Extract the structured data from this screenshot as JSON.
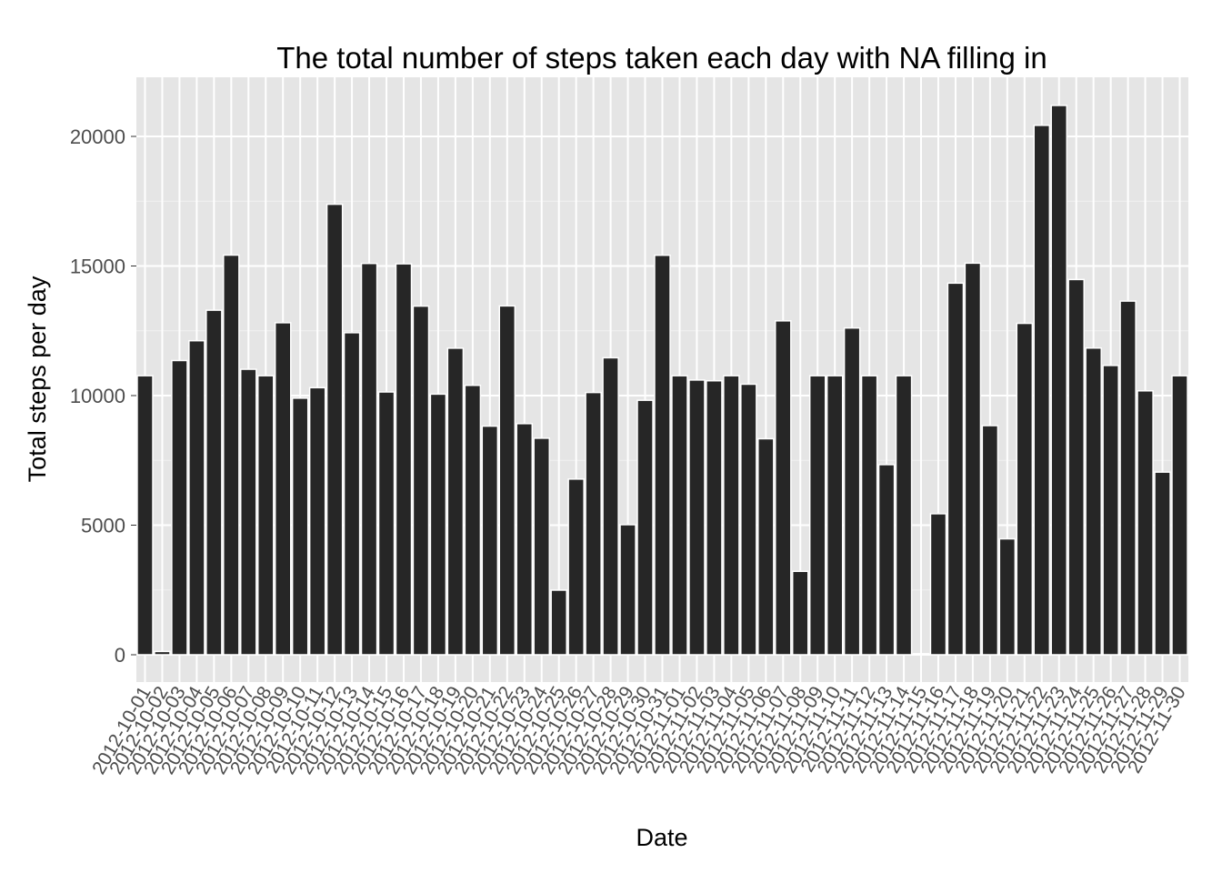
{
  "chart_data": {
    "type": "bar",
    "title": "The total number of steps taken each day with NA filling in",
    "xlabel": "Date",
    "ylabel": "Total steps per day",
    "ylim": [
      -1000,
      22300
    ],
    "yticks": [
      0,
      5000,
      10000,
      15000,
      20000
    ],
    "grid": true,
    "background": "#e5e5e5",
    "bar_color": "#262626",
    "bar_outline": "#ffffff",
    "categories": [
      "2012-10-01",
      "2012-10-02",
      "2012-10-03",
      "2012-10-04",
      "2012-10-05",
      "2012-10-06",
      "2012-10-07",
      "2012-10-08",
      "2012-10-09",
      "2012-10-10",
      "2012-10-11",
      "2012-10-12",
      "2012-10-13",
      "2012-10-14",
      "2012-10-15",
      "2012-10-16",
      "2012-10-17",
      "2012-10-18",
      "2012-10-19",
      "2012-10-20",
      "2012-10-21",
      "2012-10-22",
      "2012-10-23",
      "2012-10-24",
      "2012-10-25",
      "2012-10-26",
      "2012-10-27",
      "2012-10-28",
      "2012-10-29",
      "2012-10-30",
      "2012-10-31",
      "2012-11-01",
      "2012-11-02",
      "2012-11-03",
      "2012-11-04",
      "2012-11-05",
      "2012-11-06",
      "2012-11-07",
      "2012-11-08",
      "2012-11-09",
      "2012-11-10",
      "2012-11-11",
      "2012-11-12",
      "2012-11-13",
      "2012-11-14",
      "2012-11-15",
      "2012-11-16",
      "2012-11-17",
      "2012-11-18",
      "2012-11-19",
      "2012-11-20",
      "2012-11-21",
      "2012-11-22",
      "2012-11-23",
      "2012-11-24",
      "2012-11-25",
      "2012-11-26",
      "2012-11-27",
      "2012-11-28",
      "2012-11-29",
      "2012-11-30"
    ],
    "values": [
      10766,
      126,
      11352,
      12116,
      13294,
      15420,
      11015,
      10766,
      12811,
      9900,
      10304,
      17382,
      12426,
      15098,
      10139,
      15084,
      13452,
      10056,
      11829,
      10395,
      8821,
      13460,
      8918,
      8355,
      2492,
      6778,
      10119,
      11458,
      5018,
      9819,
      15414,
      10766,
      10600,
      10571,
      10766,
      10439,
      8334,
      12883,
      3219,
      10766,
      10766,
      12608,
      10765,
      7336,
      10766,
      41,
      5441,
      14339,
      15110,
      8841,
      4472,
      12787,
      20427,
      21194,
      14478,
      11834,
      11162,
      13646,
      10183,
      7047,
      10766
    ],
    "x_tick_labels": [
      "2012-10-01",
      "2012-10-02",
      "2012-10-03",
      "2012-10-04",
      "2012-10-05",
      "2012-10-06",
      "2012-10-07",
      "2012-10-08",
      "2012-10-09",
      "2012-10-10",
      "2012-10-11",
      "2012-10-12",
      "2012-10-13",
      "2012-10-14",
      "2012-10-15",
      "2012-10-16",
      "2012-10-17",
      "2012-10-18",
      "2012-10-19",
      "2012-10-20",
      "2012-10-21",
      "2012-10-22",
      "2012-10-23",
      "2012-10-24",
      "2012-10-25",
      "2012-10-26",
      "2012-10-27",
      "2012-10-28",
      "2012-10-29",
      "2012-10-30",
      "2012-10-31",
      "2012-11-01",
      "2012-11-02",
      "2012-11-03",
      "2012-11-04",
      "2012-11-05",
      "2012-11-06",
      "2012-11-07",
      "2012-11-08",
      "2012-11-09",
      "2012-11-10",
      "2012-11-11",
      "2012-11-12",
      "2012-11-13",
      "2012-11-14",
      "2012-11-15",
      "2012-11-16",
      "2012-11-17",
      "2012-11-18",
      "2012-11-19",
      "2012-11-20",
      "2012-11-21",
      "2012-11-22",
      "2012-11-23",
      "2012-11-24",
      "2012-11-25",
      "2012-11-26",
      "2012-11-27",
      "2012-11-28",
      "2012-11-29",
      "2012-11-30"
    ]
  }
}
